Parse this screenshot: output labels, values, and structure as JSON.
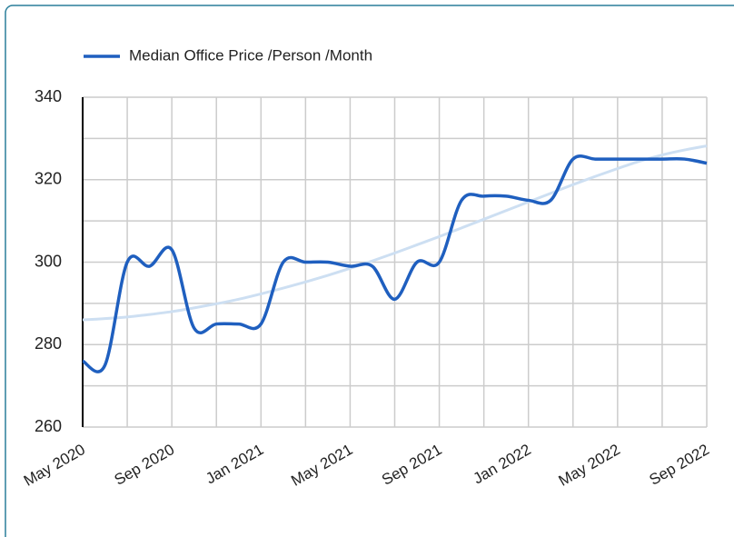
{
  "chart_data": {
    "type": "line",
    "categories": [
      "May 2020",
      null,
      null,
      null,
      "Sep 2020",
      null,
      null,
      null,
      "Jan 2021",
      null,
      null,
      null,
      "May 2021",
      null,
      null,
      null,
      "Sep 2021",
      null,
      null,
      null,
      "Jan 2022",
      null,
      null,
      null,
      "May 2022",
      null,
      null,
      null,
      "Sep 2022"
    ],
    "series": [
      {
        "name": "Median Office Price /Person /Month",
        "color": "#1f5fbf",
        "values": [
          276,
          275,
          300,
          299,
          303,
          284,
          285,
          285,
          285,
          300,
          300,
          300,
          299,
          299,
          291,
          300,
          300,
          315,
          316,
          316,
          315,
          315,
          325,
          325,
          325,
          325,
          325,
          325,
          324
        ]
      },
      {
        "color": "#cddff2",
        "values": [
          286,
          286.3,
          286.7,
          287.3,
          288,
          288.9,
          289.9,
          291,
          292.3,
          293.7,
          295.2,
          296.8,
          298.5,
          300.3,
          302.2,
          304.2,
          306.2,
          308.3,
          310.4,
          312.5,
          314.6,
          316.7,
          318.8,
          320.8,
          322.7,
          324.5,
          326,
          327.2,
          328.2
        ]
      }
    ],
    "ylim": [
      260,
      340
    ],
    "yticks": [
      260,
      280,
      300,
      320,
      340
    ],
    "y_minor_grid": [
      270,
      290,
      310,
      330
    ],
    "grid": true,
    "legend": "top"
  }
}
